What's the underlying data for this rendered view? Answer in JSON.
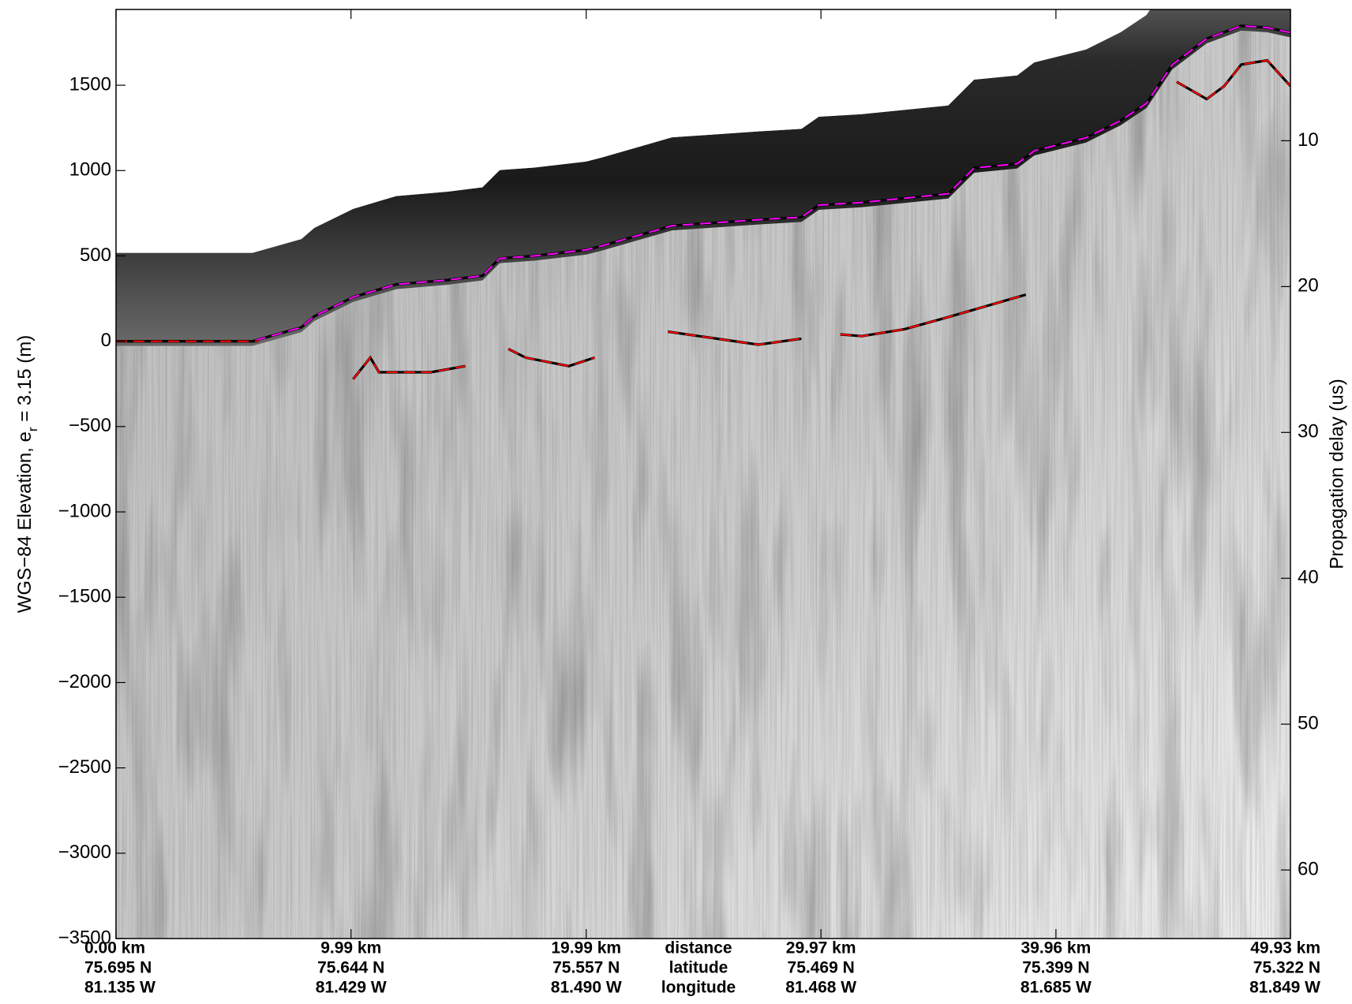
{
  "chart_data": {
    "type": "line",
    "ylabel": {
      "prefix": "WGS−84 Elevation, e",
      "subscript": "r",
      "suffix": " = 3.15 (m)"
    },
    "y2label": "Propagation delay (us)",
    "xlim": [
      0,
      49.93
    ],
    "xticks": [
      {
        "value": 0,
        "label": "0.00 km"
      },
      {
        "value": 9.99,
        "label": "9.99 km"
      },
      {
        "value": 19.99,
        "label": "19.99 km"
      },
      {
        "value": 29.97,
        "label": "29.97 km"
      },
      {
        "value": 39.96,
        "label": "39.96 km"
      },
      {
        "value": 49.93,
        "label": "49.93 km"
      }
    ],
    "latitudes": [
      "75.695 N",
      "75.644 N",
      "75.557 N",
      "75.469 N",
      "75.399 N",
      "75.322 N"
    ],
    "longitudes": [
      "81.135 W",
      "81.429 W",
      "81.490 W",
      "81.468 W",
      "81.685 W",
      "81.849 W"
    ],
    "x_row_labels": [
      "distance",
      "latitude",
      "longitude"
    ],
    "ylim": [
      -3500,
      1944
    ],
    "yticks": [
      {
        "value": -3500,
        "label": "−3500"
      },
      {
        "value": -3000,
        "label": "−3000"
      },
      {
        "value": -2500,
        "label": "−2500"
      },
      {
        "value": -2000,
        "label": "−2000"
      },
      {
        "value": -1500,
        "label": "−1500"
      },
      {
        "value": -1000,
        "label": "−1000"
      },
      {
        "value": -500,
        "label": "−500"
      },
      0,
      500,
      1000,
      1500
    ],
    "y2lim": [
      64.7,
      1.0
    ],
    "y2ticks": [
      10,
      20,
      30,
      40,
      50,
      60
    ],
    "series": [
      {
        "color": "#ff00ff",
        "x": [
          0,
          5.8,
          7.88,
          8.43,
          10.08,
          11.91,
          14.11,
          15.58,
          16.31,
          17.78,
          19.98,
          20.71,
          23.64,
          27.31,
          29.14,
          29.88,
          31.71,
          35.38,
          36.48,
          38.31,
          39.04,
          41.24,
          42.71,
          43.81,
          44.91,
          46.37,
          47.84,
          48.94,
          49.93
        ],
        "values": [
          0,
          0,
          81,
          146,
          258,
          333,
          359,
          384,
          485,
          500,
          535,
          561,
          677,
          712,
          727,
          798,
          813,
          864,
          1015,
          1040,
          1116,
          1192,
          1293,
          1394,
          1621,
          1773,
          1848,
          1838,
          1808
        ]
      },
      {
        "color": "#ff0000",
        "x": [
          0,
          6.05,
          8.0,
          10.08,
          10.81,
          11.18,
          13.38,
          14.85,
          15.7,
          16.68,
          17.41,
          19.25,
          20.35,
          22.0,
          23.46,
          27.31,
          29.14,
          30.0,
          30.79,
          31.71,
          33.54,
          35.38,
          38.68,
          42.0,
          45.09,
          46.37,
          47.11,
          47.84,
          48.94,
          49.93
        ],
        "values": [
          0,
          0,
          null,
          -222,
          -96,
          -182,
          -182,
          -146,
          null,
          -45,
          -96,
          -146,
          -96,
          null,
          56,
          -20,
          15,
          null,
          40,
          30,
          71,
          141,
          273,
          null,
          1520,
          1419,
          1495,
          1621,
          1646,
          1495
        ]
      }
    ]
  }
}
